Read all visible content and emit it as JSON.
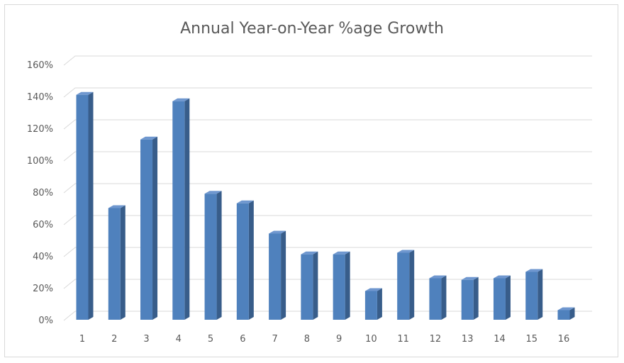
{
  "chart_data": {
    "type": "bar",
    "title": "Annual Year-on-Year %age Growth",
    "xlabel": "",
    "ylabel": "",
    "categories": [
      "1",
      "2",
      "3",
      "4",
      "5",
      "6",
      "7",
      "8",
      "9",
      "10",
      "11",
      "12",
      "13",
      "14",
      "15",
      "16"
    ],
    "values": [
      141,
      70,
      113,
      137,
      79,
      73,
      54,
      41,
      41,
      18,
      42,
      26,
      25,
      26,
      30,
      6
    ],
    "y_unit": "%",
    "ylim": [
      0,
      160
    ],
    "y_ticks": [
      "0%",
      "20%",
      "40%",
      "60%",
      "80%",
      "100%",
      "120%",
      "140%",
      "160%"
    ],
    "grid": true,
    "legend": "none",
    "colors": {
      "bar_front": "#4f81bd",
      "bar_side": "#385d8a",
      "bar_top": "#6f97cf",
      "grid": "#d9d9d9",
      "text": "#595959"
    }
  }
}
